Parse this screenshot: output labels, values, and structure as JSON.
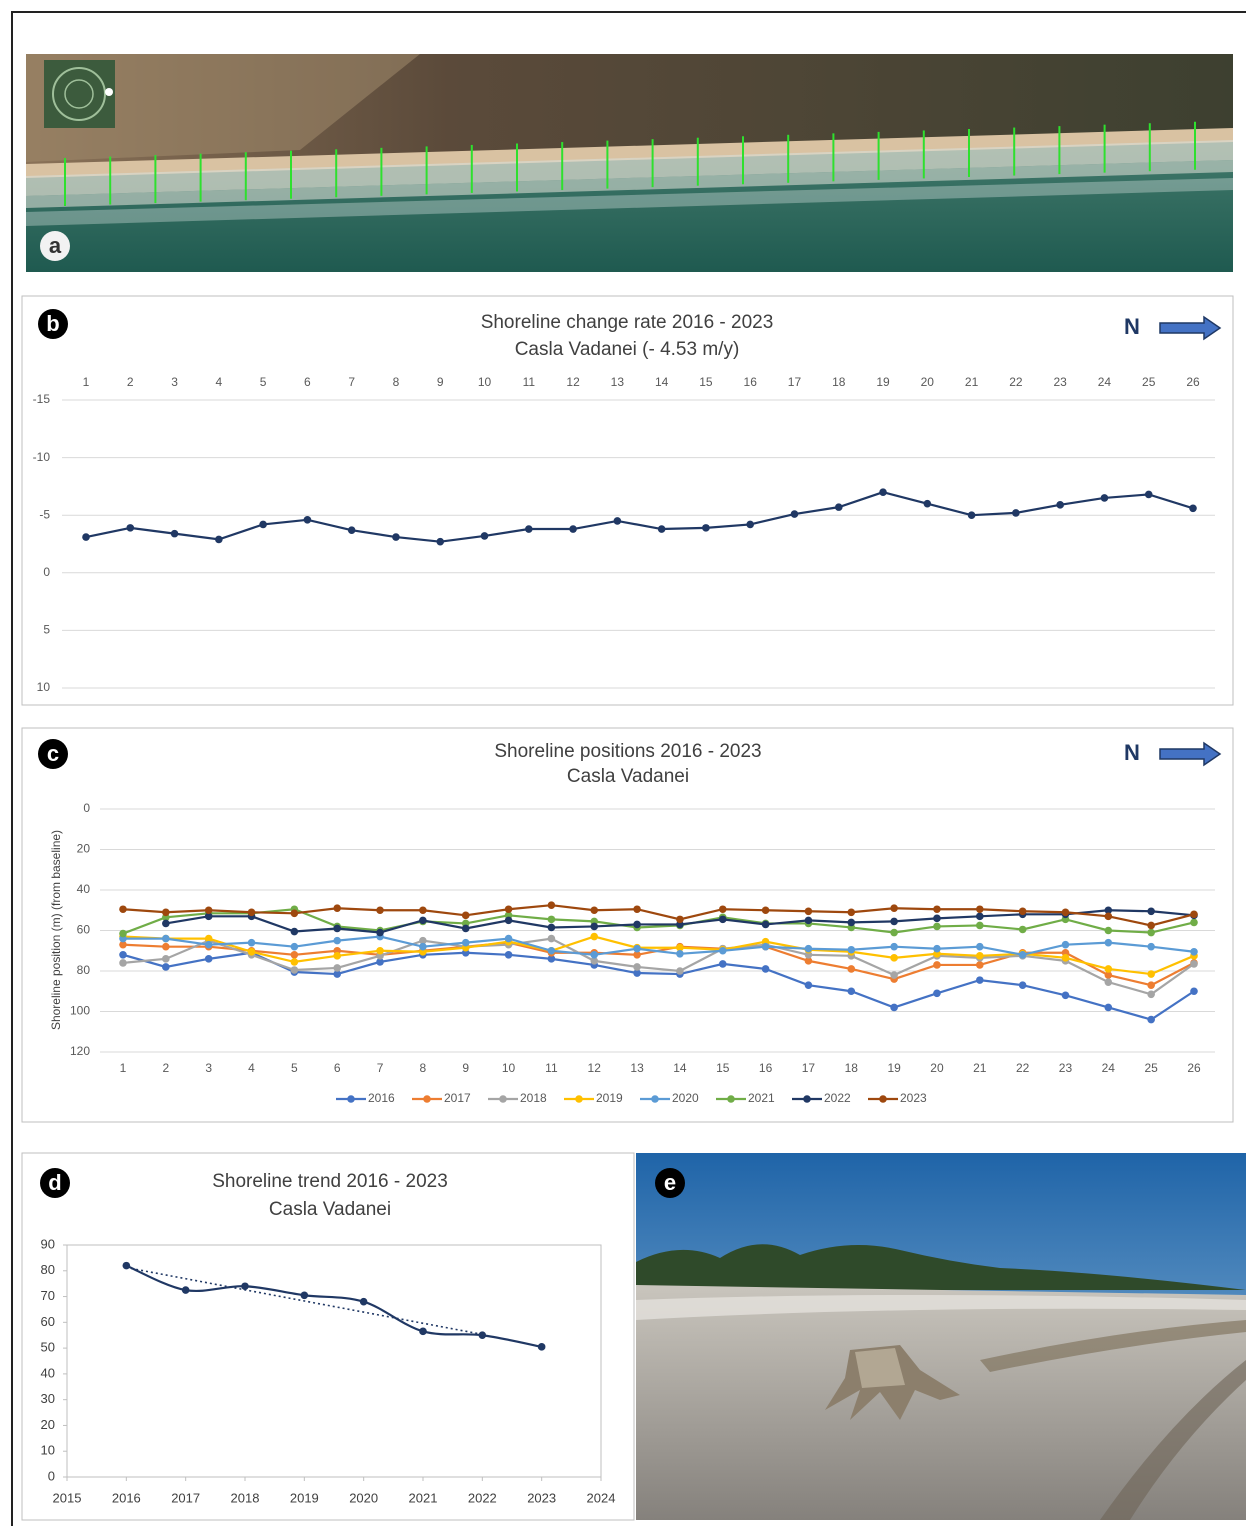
{
  "image_panels": [
    {
      "label": "a"
    },
    {
      "label": "e"
    }
  ],
  "chart_data": [
    {
      "type": "line",
      "label": "b",
      "title": "Shoreline change rate 2016 - 2023",
      "subtitle": "Casla Vadanei (- 4.53 m/y)",
      "north_label": "N",
      "categories": [
        "1",
        "2",
        "3",
        "4",
        "5",
        "6",
        "7",
        "8",
        "9",
        "10",
        "11",
        "12",
        "13",
        "14",
        "15",
        "16",
        "17",
        "18",
        "19",
        "20",
        "21",
        "22",
        "23",
        "24",
        "25",
        "26"
      ],
      "values": [
        -3.1,
        -3.9,
        -3.4,
        -2.9,
        -4.2,
        -4.6,
        -3.7,
        -3.1,
        -2.7,
        -3.2,
        -3.8,
        -3.8,
        -4.5,
        -3.8,
        -3.9,
        -4.2,
        -5.1,
        -5.7,
        -7.0,
        -6.0,
        -5.0,
        -5.2,
        -5.9,
        -6.5,
        -6.8,
        -5.6
      ],
      "color": "#203864",
      "ylim": [
        -15,
        10
      ],
      "yticks": [
        -15,
        -10,
        -5,
        0,
        5,
        10
      ],
      "y_inverted": true,
      "grid": true,
      "x_axis_position": "top"
    },
    {
      "type": "line",
      "label": "c",
      "title": "Shoreline positions 2016 - 2023",
      "subtitle": "Casla Vadanei",
      "north_label": "N",
      "ylabel": "Shoreline position (m) (from baseline)",
      "categories": [
        "1",
        "2",
        "3",
        "4",
        "5",
        "6",
        "7",
        "8",
        "9",
        "10",
        "11",
        "12",
        "13",
        "14",
        "15",
        "16",
        "17",
        "18",
        "19",
        "20",
        "21",
        "22",
        "23",
        "24",
        "25",
        "26"
      ],
      "series": [
        {
          "name": "2016",
          "color": "#4472c4",
          "values": [
            72,
            78,
            74,
            71,
            80.5,
            81.5,
            75.5,
            72,
            71,
            72,
            74,
            77,
            81,
            81.5,
            76.5,
            79,
            87,
            90,
            98,
            91,
            84.5,
            87,
            92,
            98,
            104,
            90
          ]
        },
        {
          "name": "2017",
          "color": "#ed7d31",
          "values": [
            67,
            68,
            68,
            70,
            72,
            70,
            72,
            70,
            68,
            66,
            71,
            71,
            72,
            68,
            69,
            68,
            75,
            79,
            84,
            77,
            77,
            71,
            71,
            82,
            87,
            76
          ]
        },
        {
          "name": "2018",
          "color": "#a5a5a5",
          "values": [
            76,
            74,
            65,
            72,
            79.5,
            78.5,
            72.5,
            65,
            68,
            67,
            64,
            75,
            78,
            80,
            69,
            67,
            72,
            72.5,
            82,
            72.5,
            73.5,
            72.5,
            75,
            85.5,
            91.5,
            76.5
          ]
        },
        {
          "name": "2019",
          "color": "#ffc000",
          "values": [
            63,
            64,
            64,
            70.5,
            75.5,
            72.5,
            70,
            70.5,
            68.5,
            65.5,
            70,
            63,
            68.5,
            68.5,
            69.5,
            65.5,
            69.5,
            70.5,
            73.5,
            71.5,
            72.5,
            71.5,
            73.5,
            79,
            81.5,
            72.5
          ]
        },
        {
          "name": "2020",
          "color": "#5b9bd5",
          "values": [
            64,
            64,
            67,
            66,
            68,
            65,
            63,
            68,
            66,
            64,
            70,
            72,
            69,
            71.5,
            70,
            68,
            69,
            69.5,
            68,
            69,
            68,
            72,
            67,
            66,
            68,
            70.5
          ]
        },
        {
          "name": "2021",
          "color": "#70ad47",
          "values": [
            61.5,
            53.5,
            51.5,
            51.5,
            49.5,
            58,
            60,
            55.5,
            56.5,
            52.5,
            54.5,
            55.5,
            58.5,
            57.5,
            53.5,
            56.5,
            56.5,
            58.5,
            61,
            58,
            57.5,
            59.5,
            54.5,
            60,
            61,
            56
          ]
        },
        {
          "name": "2022",
          "color": "#203864",
          "values": [
            null,
            56.5,
            53,
            53,
            60.5,
            59,
            61,
            55,
            59,
            55,
            58.5,
            58,
            57,
            57,
            54.5,
            57,
            55,
            56,
            55.5,
            54,
            53,
            52,
            52,
            50,
            50.5,
            52.5
          ]
        },
        {
          "name": "2023",
          "color": "#9e480e",
          "values": [
            49.5,
            51,
            50,
            51,
            51.5,
            49,
            50,
            50,
            52.5,
            49.5,
            47.5,
            50,
            49.5,
            54.5,
            49.5,
            50,
            50.5,
            51,
            49,
            49.5,
            49.5,
            50.5,
            51,
            53,
            57.5,
            52
          ]
        }
      ],
      "ylim": [
        0,
        120
      ],
      "yticks": [
        0,
        20,
        40,
        60,
        80,
        100,
        120
      ],
      "y_inverted": true,
      "grid": true,
      "legend": "bottom"
    },
    {
      "type": "line",
      "label": "d",
      "title": "Shoreline trend 2016 - 2023",
      "subtitle": "Casla Vadanei",
      "x": [
        2016,
        2017,
        2018,
        2019,
        2020,
        2021,
        2022,
        2023
      ],
      "values": [
        82,
        72.5,
        74,
        70.5,
        68,
        56.5,
        55,
        50.5
      ],
      "color": "#203864",
      "xlim": [
        2015,
        2024
      ],
      "xticks": [
        2015,
        2016,
        2017,
        2018,
        2019,
        2020,
        2021,
        2022,
        2023,
        2024
      ],
      "ylim": [
        0,
        90
      ],
      "yticks": [
        0,
        10,
        20,
        30,
        40,
        50,
        60,
        70,
        80,
        90
      ],
      "grid": false,
      "smooth": true,
      "trendline": "linear"
    }
  ]
}
